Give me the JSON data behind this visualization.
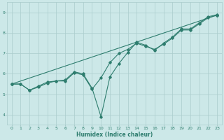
{
  "xlabel": "Humidex (Indice chaleur)",
  "xlim": [
    -0.5,
    23.5
  ],
  "ylim": [
    3.5,
    9.5
  ],
  "xticks": [
    0,
    1,
    2,
    3,
    4,
    5,
    6,
    7,
    8,
    9,
    10,
    11,
    12,
    13,
    14,
    15,
    16,
    17,
    18,
    19,
    20,
    21,
    22,
    23
  ],
  "yticks": [
    4,
    5,
    6,
    7,
    8,
    9
  ],
  "bg_color": "#cce8e8",
  "line_color": "#2e7d6e",
  "grid_color": "#aacccc",
  "line1_x": [
    0,
    1,
    2,
    3,
    4,
    5,
    6,
    7,
    8,
    9,
    10,
    11,
    12,
    13,
    14,
    15,
    16,
    17,
    18,
    19,
    20,
    21,
    22,
    23
  ],
  "line1_y": [
    5.5,
    5.5,
    5.2,
    5.4,
    5.6,
    5.65,
    5.7,
    6.1,
    6.0,
    5.3,
    3.9,
    5.85,
    6.5,
    7.05,
    7.55,
    7.4,
    7.15,
    7.5,
    7.8,
    8.2,
    8.2,
    8.5,
    8.8,
    8.9
  ],
  "line2_x": [
    0,
    1,
    2,
    3,
    4,
    5,
    6,
    7,
    8,
    9,
    10,
    11,
    12,
    13,
    14,
    15,
    16,
    17,
    18,
    19,
    20,
    21,
    22,
    23
  ],
  "line2_y": [
    5.5,
    5.5,
    5.2,
    5.35,
    5.55,
    5.65,
    5.65,
    6.05,
    5.95,
    5.25,
    5.8,
    6.55,
    7.0,
    7.2,
    7.5,
    7.35,
    7.2,
    7.45,
    7.75,
    8.15,
    8.15,
    8.45,
    8.75,
    8.88
  ],
  "line3_x": [
    0,
    23
  ],
  "line3_y": [
    5.5,
    8.88
  ]
}
